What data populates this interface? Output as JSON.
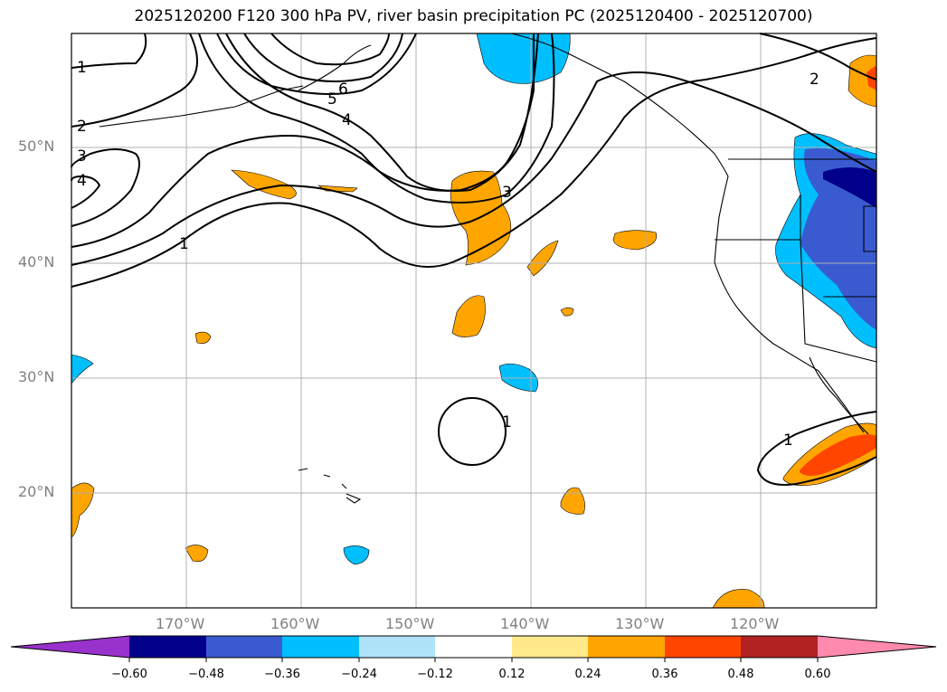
{
  "title": "2025120200 F120 300 hPa PV, river basin precipitation PC (2025120400 - 2025120700)",
  "map": {
    "lat_ticks": [
      {
        "value": 50,
        "label": "50°N"
      },
      {
        "value": 40,
        "label": "40°N"
      },
      {
        "value": 30,
        "label": "30°N"
      },
      {
        "value": 20,
        "label": "20°N"
      }
    ],
    "lon_ticks": [
      {
        "value": -170,
        "label": "170°W"
      },
      {
        "value": -160,
        "label": "160°W"
      },
      {
        "value": -150,
        "label": "150°W"
      },
      {
        "value": -140,
        "label": "140°W"
      },
      {
        "value": -130,
        "label": "130°W"
      },
      {
        "value": -120,
        "label": "120°W"
      }
    ],
    "contour_labels": [
      "1",
      "2",
      "3",
      "4",
      "5",
      "6"
    ],
    "colors": {
      "coast": "#000000",
      "grid": "#b0b0b0",
      "pos_low": "#ffa500",
      "pos_mid": "#ff4500",
      "neg_low": "#00bfff",
      "neg_mid": "#3a5bd0",
      "neg_high": "#00008b"
    }
  },
  "colorbar": {
    "labels": [
      "−0.60",
      "−0.48",
      "−0.36",
      "−0.24",
      "−0.12",
      "0.12",
      "0.24",
      "0.36",
      "0.48",
      "0.60"
    ],
    "colors": [
      "#9932cc",
      "#00008b",
      "#3a5bd0",
      "#00bfff",
      "#afe3fa",
      "#ffffff",
      "#ffe98a",
      "#ffa500",
      "#ff4500",
      "#b22222",
      "#ff8aae"
    ]
  }
}
